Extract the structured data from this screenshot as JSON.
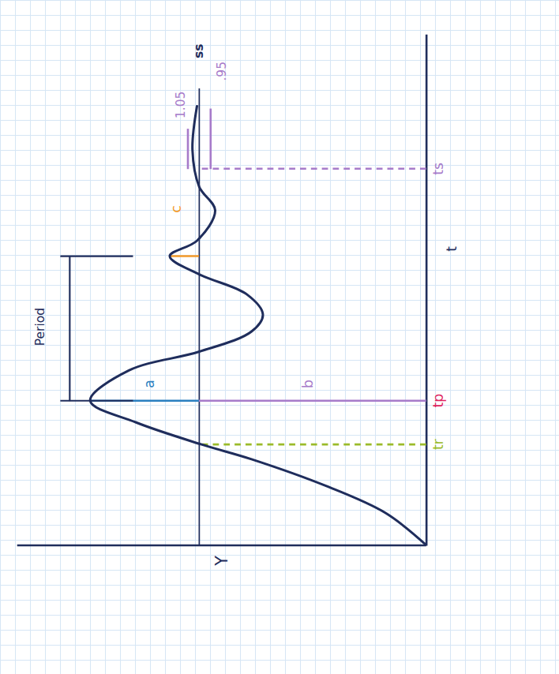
{
  "chart_data": {
    "type": "line",
    "xlabel": "t",
    "ylabel": "Y",
    "x": [
      0,
      0.48,
      0.88,
      1.28,
      1.5,
      1.83,
      2.15,
      2.6,
      2.88,
      3.18,
      3.43,
      3.73,
      4.03,
      4.3,
      4.53,
      4.98,
      5.33,
      5.88,
      6.53
    ],
    "values": [
      0,
      0.18,
      0.44,
      0.77,
      0.99,
      1.28,
      1.48,
      1.31,
      1.0,
      0.77,
      0.72,
      0.79,
      1.0,
      1.13,
      1.01,
      0.93,
      1.0,
      1.03,
      1.01
    ],
    "color": "#1f2d5c",
    "xlim": [
      0,
      7.6
    ],
    "ylim": [
      0,
      1.8
    ],
    "xticks": [],
    "yticks": [],
    "tick_labels": false,
    "grid": false,
    "steady_state": {
      "value": 1.0,
      "end": 6.8,
      "label": "ss",
      "label_t": 7.35,
      "color": "#1f2d5c"
    },
    "tolerance_band": {
      "upper": 1.05,
      "lower": 0.95,
      "start": 5.6,
      "upper_end": 6.2,
      "lower_end": 6.5,
      "upper_label": "1.05",
      "upper_label_at": [
        6.55,
        1.08
      ],
      "lower_label": ".95",
      "lower_label_at": [
        7.05,
        0.9
      ],
      "color": "#a77bca"
    },
    "guides": [
      {
        "t": 1.5,
        "from": 0,
        "to": 1.0,
        "color": "#9bbb2a",
        "line_style": "dashed"
      },
      {
        "t": 2.15,
        "from": 0,
        "to": 1.0,
        "color": "#a77bca",
        "line_style": "solid"
      },
      {
        "t": 2.15,
        "from": 1.0,
        "to": 1.48,
        "color": "#2a7fc0",
        "line_style": "solid"
      },
      {
        "t": 4.3,
        "from": 1.0,
        "to": 1.13,
        "color": "#f39a2a",
        "line_style": "solid"
      },
      {
        "t": 5.6,
        "from": 0,
        "to": 1.0,
        "color": "#a77bca",
        "line_style": "dashed"
      }
    ],
    "annotations": [
      {
        "text": "a",
        "t": 2.4,
        "y": 1.22,
        "color": "#2a7fc0"
      },
      {
        "text": "b",
        "t": 2.4,
        "y": 0.52,
        "color": "#a77bca"
      },
      {
        "text": "c",
        "t": 5.0,
        "y": 1.1,
        "color": "#f39a2a"
      }
    ],
    "time_labels": [
      {
        "text": "tr",
        "t": 1.5,
        "color": "#9bbb2a"
      },
      {
        "text": "tp",
        "t": 2.15,
        "color": "#e0245e"
      },
      {
        "text": "ts",
        "t": 5.6,
        "color": "#a77bca"
      }
    ],
    "period": {
      "start": 2.15,
      "end": 4.3,
      "y": 1.57,
      "label": "Period",
      "label_at": [
        3.25,
        1.7
      ],
      "color": "#1f2d5c"
    }
  }
}
